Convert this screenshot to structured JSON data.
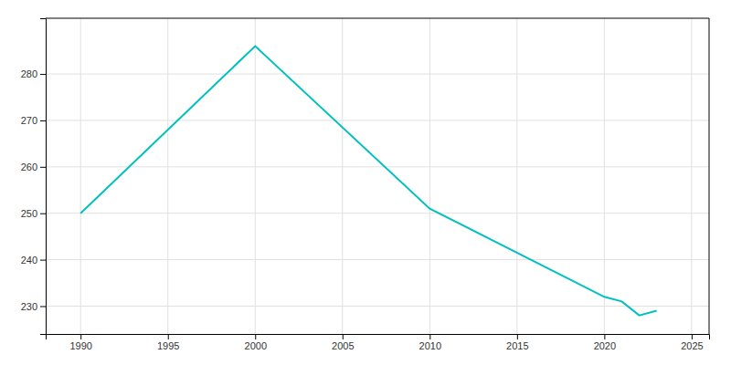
{
  "chart_data": {
    "type": "line",
    "x": [
      1990,
      2000,
      2010,
      2020,
      2021,
      2022,
      2023
    ],
    "values": [
      250,
      286,
      251,
      232,
      231,
      228,
      229
    ],
    "color": "#00C0C0",
    "xlim": [
      1988,
      2026
    ],
    "ylim": [
      224,
      292
    ],
    "xticks": [
      1990,
      1995,
      2000,
      2005,
      2010,
      2015,
      2020,
      2025
    ],
    "yticks": [
      230,
      240,
      250,
      260,
      270,
      280
    ],
    "grid": true
  }
}
